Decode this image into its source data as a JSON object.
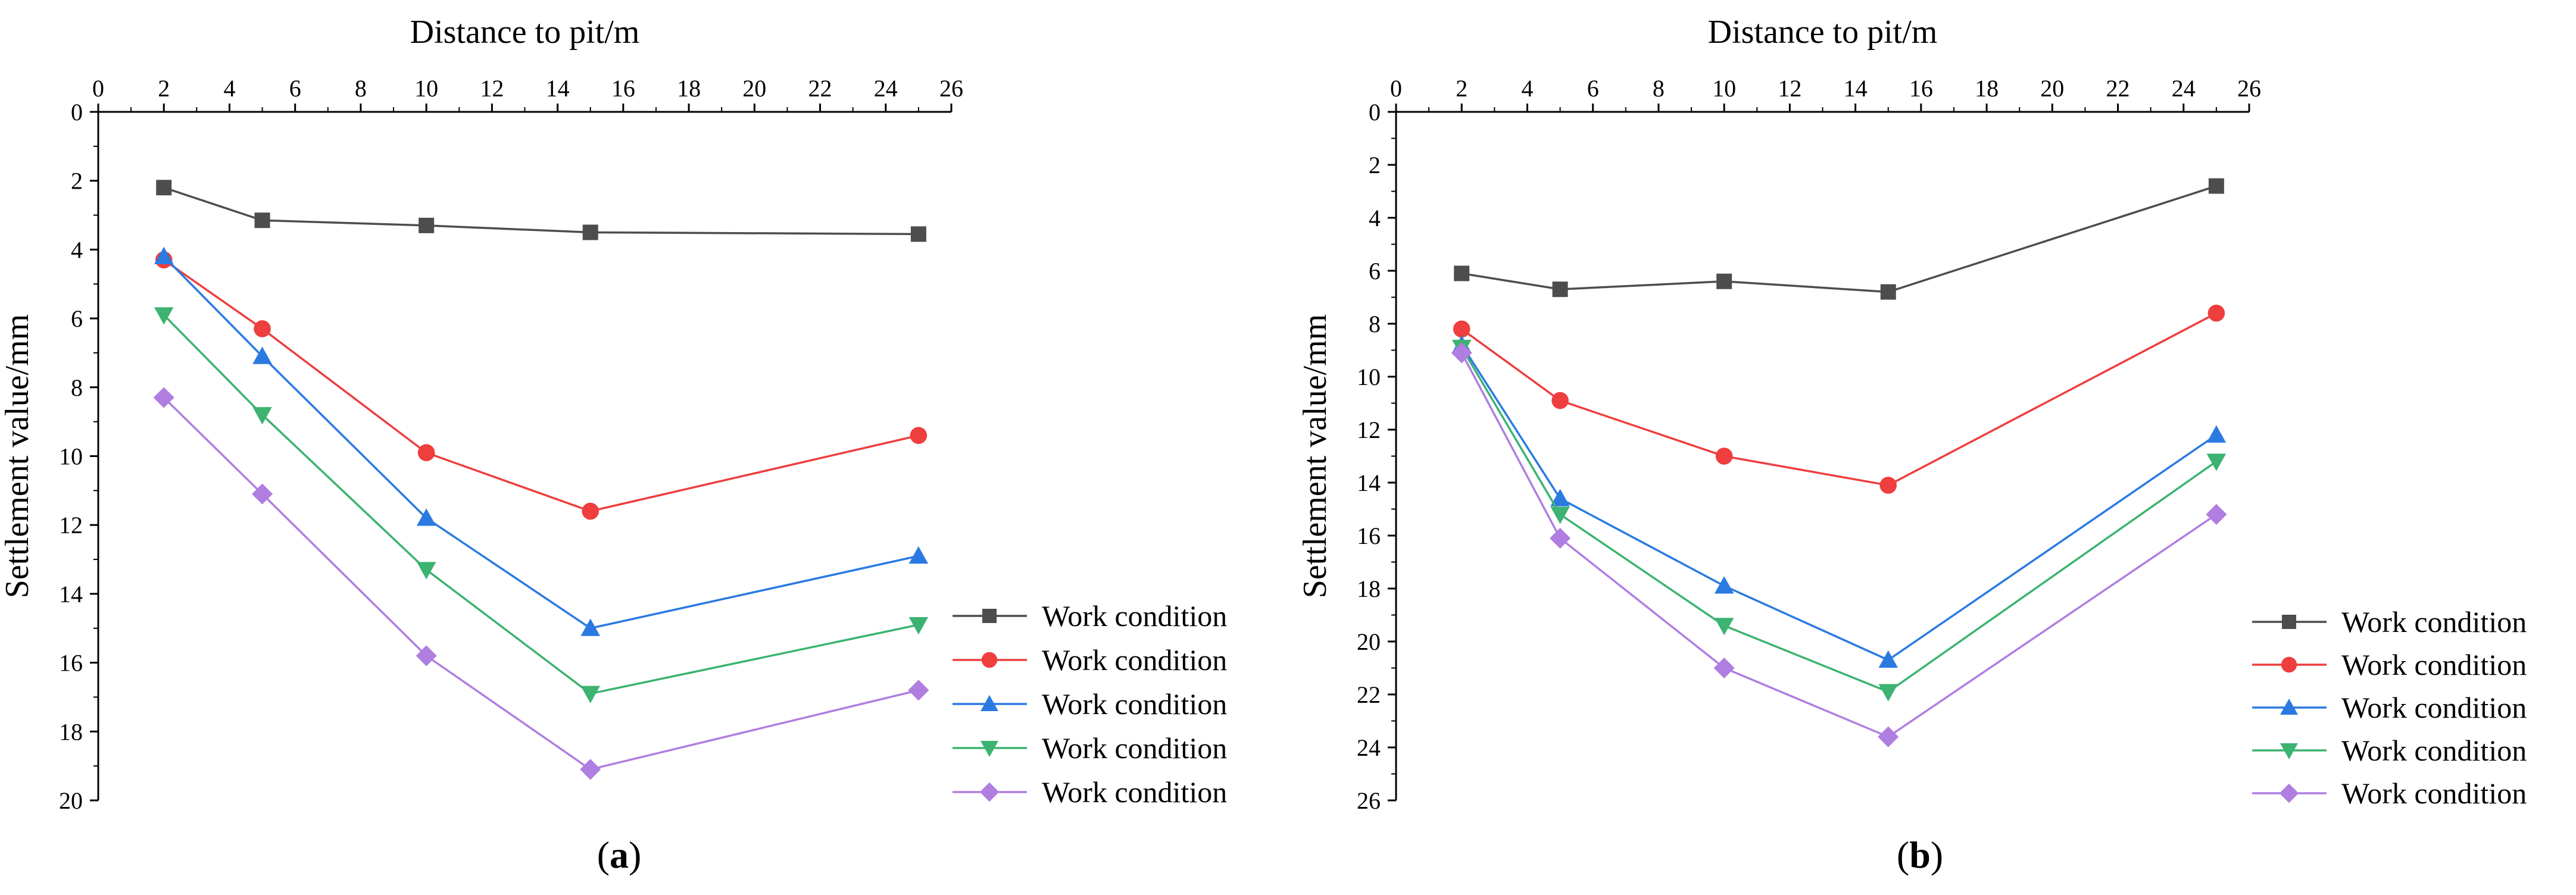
{
  "chart_data": [
    {
      "type": "line",
      "panel_label": "a",
      "xlabel": "Distance to pit/m",
      "ylabel": "Settlement value/mm",
      "xlim": [
        0,
        26
      ],
      "ylim": [
        0,
        20
      ],
      "x_ticks": [
        0,
        2,
        4,
        6,
        8,
        10,
        12,
        14,
        16,
        18,
        20,
        22,
        24,
        26
      ],
      "y_ticks": [
        0,
        2,
        4,
        6,
        8,
        10,
        12,
        14,
        16,
        18,
        20
      ],
      "x_axis_position": "top",
      "y_axis_inverted": true,
      "grid": false,
      "legend_position": "right",
      "x": [
        2,
        5,
        10,
        15,
        25
      ],
      "series": [
        {
          "name": "Work condition",
          "color": "#4d4d4d",
          "marker": "square",
          "values": [
            2.2,
            3.15,
            3.3,
            3.5,
            3.55
          ]
        },
        {
          "name": "Work condition",
          "color": "#ee3e3e",
          "marker": "circle",
          "values": [
            4.3,
            6.3,
            9.9,
            11.6,
            9.4
          ]
        },
        {
          "name": "Work condition",
          "color": "#2a7ae2",
          "marker": "triangle-up",
          "values": [
            4.2,
            7.1,
            11.8,
            15.0,
            12.9
          ]
        },
        {
          "name": "Work condition",
          "color": "#3cb371",
          "marker": "triangle-down",
          "values": [
            5.9,
            8.8,
            13.3,
            16.9,
            14.9
          ]
        },
        {
          "name": "Work condition",
          "color": "#b07ee0",
          "marker": "diamond",
          "values": [
            8.3,
            11.1,
            15.8,
            19.1,
            16.8
          ]
        }
      ]
    },
    {
      "type": "line",
      "panel_label": "b",
      "xlabel": "Distance to pit/m",
      "ylabel": "Settlement value/mm",
      "xlim": [
        0,
        26
      ],
      "ylim": [
        0,
        26
      ],
      "x_ticks": [
        0,
        2,
        4,
        6,
        8,
        10,
        12,
        14,
        16,
        18,
        20,
        22,
        24,
        26
      ],
      "y_ticks": [
        0,
        2,
        4,
        6,
        8,
        10,
        12,
        14,
        16,
        18,
        20,
        22,
        24,
        26
      ],
      "x_axis_position": "top",
      "y_axis_inverted": true,
      "grid": false,
      "legend_position": "right",
      "x": [
        2,
        5,
        10,
        15,
        25
      ],
      "series": [
        {
          "name": "Work condition",
          "color": "#4d4d4d",
          "marker": "square",
          "values": [
            6.1,
            6.7,
            6.4,
            6.8,
            2.8
          ]
        },
        {
          "name": "Work condition",
          "color": "#ee3e3e",
          "marker": "circle",
          "values": [
            8.2,
            10.9,
            13.0,
            14.1,
            7.6
          ]
        },
        {
          "name": "Work condition",
          "color": "#2a7ae2",
          "marker": "triangle-up",
          "values": [
            8.8,
            14.6,
            17.9,
            20.7,
            12.2
          ]
        },
        {
          "name": "Work condition",
          "color": "#3cb371",
          "marker": "triangle-down",
          "values": [
            8.9,
            15.2,
            19.4,
            21.9,
            13.2
          ]
        },
        {
          "name": "Work condition",
          "color": "#b07ee0",
          "marker": "diamond",
          "values": [
            9.1,
            16.1,
            21.0,
            23.6,
            15.2
          ]
        }
      ]
    }
  ]
}
